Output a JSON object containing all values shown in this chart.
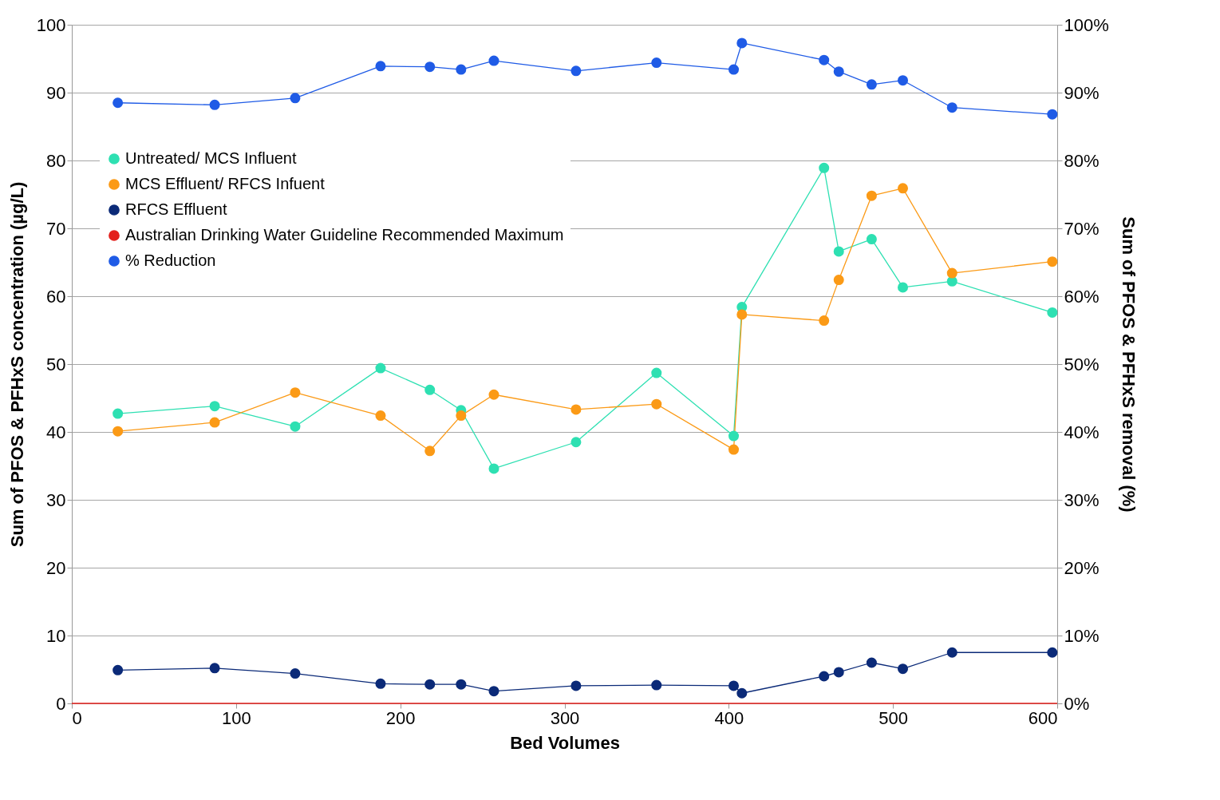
{
  "chart_data": {
    "type": "line",
    "xlabel": "Bed Volumes",
    "ylabel": "Sum of PFOS & PFHxS concentration (µg/L)",
    "y2label": "Sum of PFOS & PFHxS removal (%)",
    "x": [
      28,
      87,
      136,
      188,
      218,
      237,
      257,
      307,
      356,
      403,
      408,
      458,
      467,
      487,
      506,
      536,
      597
    ],
    "series": [
      {
        "name": "Untreated/ MCS Influent",
        "color": "#2ee0b2",
        "values": [
          42.7,
          43.8,
          40.8,
          49.4,
          46.2,
          43.2,
          34.6,
          38.5,
          48.7,
          39.4,
          58.4,
          78.9,
          66.6,
          68.4,
          61.3,
          62.2,
          57.6
        ]
      },
      {
        "name": "MCS Effluent/ RFCS Infuent",
        "color": "#fb9a16",
        "values": [
          40.1,
          41.4,
          45.8,
          42.4,
          37.2,
          42.4,
          45.5,
          43.3,
          44.1,
          37.4,
          57.3,
          56.4,
          62.4,
          74.8,
          75.9,
          63.4,
          65.1
        ]
      },
      {
        "name": "RFCS Effluent",
        "color": "#0b2a78",
        "values": [
          4.9,
          5.2,
          4.4,
          2.9,
          2.8,
          2.8,
          1.8,
          2.6,
          2.7,
          2.6,
          1.5,
          4.0,
          4.6,
          6.0,
          5.1,
          7.5,
          7.5
        ]
      },
      {
        "name": "Australian Drinking Water Guideline Recommended Maximum",
        "color": "#e3201c",
        "x": [
          0,
          600
        ],
        "values": [
          0,
          0
        ],
        "marker": "none"
      },
      {
        "name": "% Reduction",
        "color": "#1f5be6",
        "axis": "y2",
        "values": [
          88.5,
          88.2,
          89.2,
          93.9,
          93.8,
          93.4,
          94.7,
          93.2,
          94.4,
          93.4,
          97.3,
          94.8,
          93.1,
          91.2,
          91.8,
          87.8,
          86.8
        ]
      }
    ],
    "xlim": [
      0,
      600
    ],
    "xticks": [
      0,
      100,
      200,
      300,
      400,
      500,
      600
    ],
    "ylim": [
      0,
      100
    ],
    "yticks": [
      0,
      10,
      20,
      30,
      40,
      50,
      60,
      70,
      80,
      90,
      100
    ],
    "y2lim": [
      0,
      100
    ],
    "y2ticks": [
      {
        "value": 0,
        "label": "0%"
      },
      {
        "value": 10,
        "label": "10%"
      },
      {
        "value": 20,
        "label": "20%"
      },
      {
        "value": 30,
        "label": "30%"
      },
      {
        "value": 40,
        "label": "40%"
      },
      {
        "value": 50,
        "label": "50%"
      },
      {
        "value": 60,
        "label": "60%"
      },
      {
        "value": 70,
        "label": "70%"
      },
      {
        "value": 80,
        "label": "80%"
      },
      {
        "value": 90,
        "label": "90%"
      },
      {
        "value": 100,
        "label": "100%"
      }
    ],
    "grid": "y",
    "legend": "top left",
    "marker": "circle",
    "line_style": "solid"
  }
}
